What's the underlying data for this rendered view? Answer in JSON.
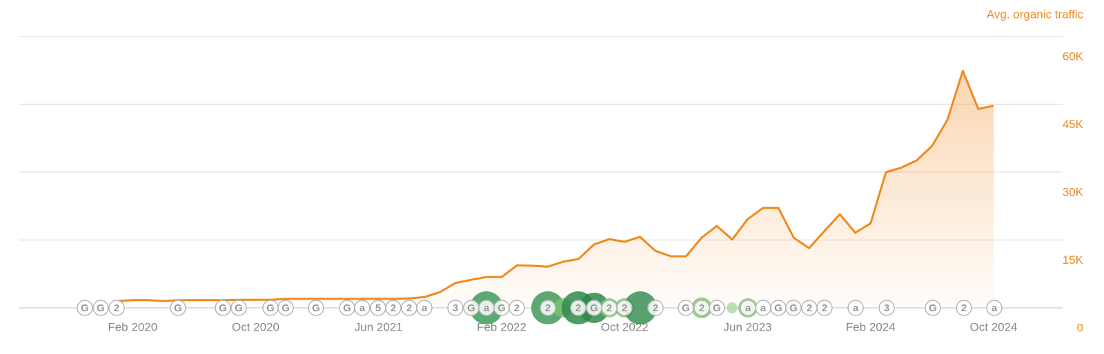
{
  "chart_data": {
    "type": "line",
    "title": "Avg. organic traffic",
    "categories": [
      null,
      "Feb 2020",
      null,
      null,
      null,
      null,
      null,
      null,
      null,
      "Oct 2020",
      null,
      null,
      null,
      null,
      null,
      null,
      null,
      "Jun 2021",
      null,
      null,
      null,
      null,
      null,
      null,
      null,
      "Feb 2022",
      null,
      null,
      null,
      null,
      null,
      null,
      null,
      "Oct 2022",
      null,
      null,
      null,
      null,
      null,
      null,
      null,
      "Jun 2023",
      null,
      null,
      null,
      null,
      null,
      null,
      null,
      "Feb 2024",
      null,
      null,
      null,
      null,
      null,
      null,
      null,
      "Oct 2024"
    ],
    "series": [
      {
        "color": "#f08a1f",
        "values": [
          1500,
          1700,
          1700,
          1500,
          1700,
          1700,
          1700,
          1700,
          1800,
          1800,
          1800,
          2000,
          2000,
          2000,
          2000,
          2000,
          2000,
          2000,
          2000,
          2100,
          2400,
          3500,
          5500,
          6200,
          6800,
          6800,
          9400,
          9300,
          9100,
          10200,
          10800,
          14000,
          15200,
          14600,
          15700,
          12600,
          11400,
          11400,
          15500,
          18100,
          15100,
          19600,
          22100,
          22100,
          15500,
          13200,
          17000,
          20700,
          16600,
          18700,
          30000,
          31000,
          32600,
          35800,
          41600,
          52400,
          44000,
          44700
        ]
      }
    ],
    "ylim": [
      0,
      60000
    ],
    "yticks": [
      0,
      {
        "value": 15000,
        "label": "15K"
      },
      {
        "value": 30000,
        "label": "30K"
      },
      {
        "value": 45000,
        "label": "45K"
      },
      {
        "value": 60000,
        "label": "60K"
      }
    ],
    "grid": true,
    "area": true,
    "events": [
      "G",
      "G",
      "2",
      "G",
      "G",
      "G",
      "G",
      "G",
      "G",
      "G",
      "a",
      "5",
      "2",
      "2",
      "a",
      "3",
      "G",
      "a",
      "G",
      "2",
      "2",
      "2",
      "G",
      "2",
      "2",
      "2",
      "G",
      "2",
      "G",
      "a",
      "a",
      "G",
      "G",
      "2",
      "2",
      "a",
      "3",
      "G",
      "2",
      "a"
    ]
  }
}
